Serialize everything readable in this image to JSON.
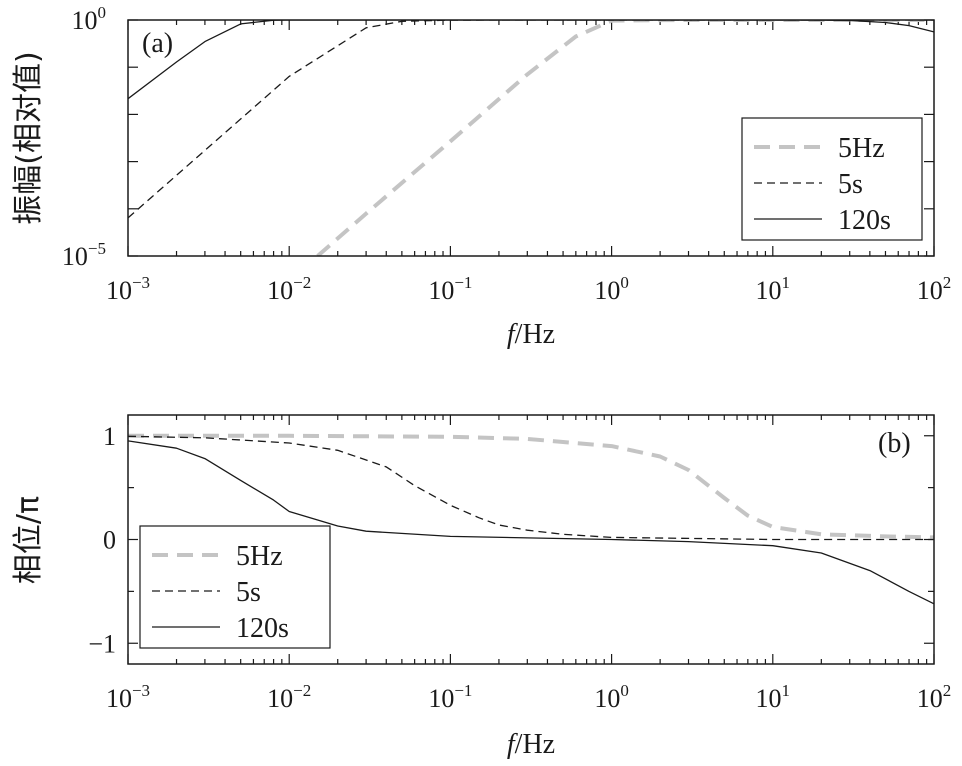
{
  "chart_data": [
    {
      "type": "line",
      "panel_label": "(a)",
      "xlabel_italic": "f",
      "xlabel_rest": "/Hz",
      "ylabel": "振幅(相对值)",
      "xscale": "log",
      "yscale": "log",
      "xlim": [
        0.001,
        100
      ],
      "ylim": [
        1e-05,
        1
      ],
      "x_ticks": [
        {
          "base": "10",
          "exp": "−3"
        },
        {
          "base": "10",
          "exp": "−2"
        },
        {
          "base": "10",
          "exp": "−1"
        },
        {
          "base": "10",
          "exp": "0"
        },
        {
          "base": "10",
          "exp": "1"
        },
        {
          "base": "10",
          "exp": "2"
        }
      ],
      "y_ticks": [
        {
          "base": "10",
          "exp": "−5"
        },
        {
          "base": "10",
          "exp": "0"
        }
      ],
      "legend_position": "right",
      "series": [
        {
          "name": "5Hz",
          "style": "dashed-thick",
          "color": "#c4c4c4",
          "x": [
            0.015,
            0.03,
            0.1,
            0.3,
            0.6,
            1,
            2,
            4,
            10,
            30,
            100
          ],
          "y": [
            1e-05,
            7.93e-05,
            0.00269,
            0.0705,
            0.447,
            0.971,
            0.9957,
            0.9997,
            1.0,
            1.0,
            1.0
          ]
        },
        {
          "name": "5s",
          "style": "dashed-thin",
          "color": "#1a1a1a",
          "x": [
            0.001,
            0.003,
            0.01,
            0.03,
            0.05,
            0.1,
            0.2,
            0.3,
            0.5,
            1,
            10,
            100
          ],
          "y": [
            6.4e-05,
            0.00173,
            0.0638,
            0.685,
            0.94,
            0.996,
            0.9998,
            1.0,
            1.0,
            1.0,
            1.0,
            1.0
          ]
        },
        {
          "name": "120s",
          "style": "solid",
          "color": "#1a1a1a",
          "x": [
            0.001,
            0.002,
            0.003,
            0.005,
            0.008,
            0.01,
            0.02,
            0.1,
            1,
            10,
            20,
            30,
            50,
            70,
            100
          ],
          "y": [
            0.0215,
            0.129,
            0.349,
            0.826,
            0.99,
            0.998,
            1.0,
            1.0,
            1.0,
            1.0,
            0.995,
            0.976,
            0.885,
            0.76,
            0.56
          ]
        }
      ]
    },
    {
      "type": "line",
      "panel_label": "(b)",
      "xlabel_italic": "f",
      "xlabel_rest": "/Hz",
      "ylabel": "相位/π",
      "xscale": "log",
      "xlim": [
        0.001,
        100
      ],
      "ylim": [
        -1.2,
        1.2
      ],
      "x_ticks": [
        {
          "base": "10",
          "exp": "−3"
        },
        {
          "base": "10",
          "exp": "−2"
        },
        {
          "base": "10",
          "exp": "−1"
        },
        {
          "base": "10",
          "exp": "0"
        },
        {
          "base": "10",
          "exp": "1"
        },
        {
          "base": "10",
          "exp": "2"
        }
      ],
      "y_ticks": [
        "1",
        "0",
        "−1"
      ],
      "y_tick_values": [
        1,
        0,
        -1
      ],
      "legend_position": "bottom-left",
      "series": [
        {
          "name": "5Hz",
          "style": "dashed-thick",
          "color": "#c4c4c4",
          "x": [
            0.001,
            0.01,
            0.1,
            0.3,
            1,
            2,
            3,
            5,
            7,
            10,
            20,
            50,
            100
          ],
          "y": [
            1.0,
            1.0,
            0.99,
            0.97,
            0.9,
            0.8,
            0.67,
            0.4,
            0.23,
            0.12,
            0.05,
            0.03,
            0.02
          ]
        },
        {
          "name": "5s",
          "style": "dashed-thin",
          "color": "#1a1a1a",
          "x": [
            0.001,
            0.003,
            0.01,
            0.02,
            0.04,
            0.06,
            0.1,
            0.15,
            0.2,
            0.3,
            0.5,
            1,
            10,
            100
          ],
          "y": [
            0.995,
            0.98,
            0.93,
            0.86,
            0.7,
            0.52,
            0.33,
            0.21,
            0.14,
            0.09,
            0.05,
            0.02,
            0.0,
            0.0
          ]
        },
        {
          "name": "120s",
          "style": "solid",
          "color": "#1a1a1a",
          "x": [
            0.001,
            0.002,
            0.003,
            0.005,
            0.008,
            0.01,
            0.02,
            0.03,
            0.1,
            1,
            3,
            10,
            20,
            40,
            70,
            100
          ],
          "y": [
            0.95,
            0.88,
            0.78,
            0.57,
            0.38,
            0.27,
            0.13,
            0.08,
            0.03,
            0.0,
            -0.02,
            -0.06,
            -0.13,
            -0.3,
            -0.5,
            -0.62
          ]
        }
      ]
    }
  ]
}
